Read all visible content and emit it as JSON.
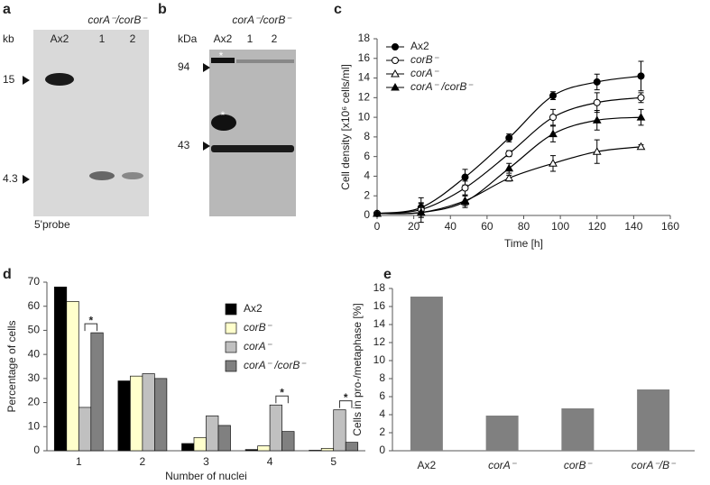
{
  "panels": {
    "a": "a",
    "b": "b",
    "c": "c",
    "d": "d",
    "e": "e"
  },
  "blot_a": {
    "unit": "kb",
    "lanes": [
      "Ax2",
      "1",
      "2"
    ],
    "group": "corA⁻/corB⁻",
    "markers": [
      "15",
      "4.3"
    ],
    "probe": "5'probe"
  },
  "blot_b": {
    "unit": "kDa",
    "lanes": [
      "Ax2",
      "1",
      "2"
    ],
    "group": "corA⁻/corB⁻",
    "markers": [
      "94",
      "43"
    ],
    "stars": [
      "*",
      "*"
    ]
  },
  "chart_data": [
    {
      "type": "line",
      "xlabel": "Time [h]",
      "ylabel": "Cell density [x10⁶ cells/ml]",
      "x": [
        0,
        24,
        48,
        72,
        96,
        120,
        144
      ],
      "xlim": [
        0,
        160
      ],
      "xticks": [
        0,
        20,
        40,
        60,
        80,
        100,
        120,
        140,
        160
      ],
      "ylim": [
        0,
        18
      ],
      "yticks": [
        0,
        2,
        4,
        6,
        8,
        10,
        12,
        14,
        16,
        18
      ],
      "legend": "upper-left",
      "series": [
        {
          "name": "Ax2",
          "color": "#000000",
          "marker": "circle",
          "filled": true,
          "values": [
            0.2,
            0.8,
            3.9,
            7.9,
            12.2,
            13.6,
            14.2
          ],
          "errors": [
            0.1,
            1.0,
            0.8,
            0.4,
            0.4,
            0.8,
            1.5
          ]
        },
        {
          "name": "corB⁻",
          "color": "#000000",
          "marker": "circle",
          "filled": false,
          "values": [
            0.2,
            0.6,
            2.8,
            6.3,
            10.0,
            11.5,
            12.0
          ],
          "errors": [
            0.1,
            0.6,
            0.7,
            0.3,
            0.8,
            1.0,
            0.5
          ]
        },
        {
          "name": "corA⁻",
          "color": "#000000",
          "marker": "triangle",
          "filled": false,
          "values": [
            0.2,
            0.3,
            1.5,
            3.8,
            5.3,
            6.5,
            7.0
          ],
          "errors": [
            0.1,
            0.5,
            0.5,
            0.3,
            0.8,
            1.2,
            0.2
          ]
        },
        {
          "name": "corA⁻ /corB⁻",
          "color": "#000000",
          "marker": "triangle",
          "filled": true,
          "values": [
            0.2,
            0.3,
            1.4,
            4.8,
            8.3,
            9.7,
            10.0
          ],
          "errors": [
            0.1,
            1.0,
            0.6,
            0.5,
            0.8,
            1.0,
            0.8
          ]
        }
      ]
    },
    {
      "type": "grouped-bar",
      "xlabel": "Number of nuclei",
      "ylabel": "Percentage of cells",
      "categories": [
        "1",
        "2",
        "3",
        "4",
        "5"
      ],
      "ylim": [
        0,
        70
      ],
      "yticks": [
        0,
        10,
        20,
        30,
        40,
        50,
        60,
        70
      ],
      "legend": "upper-right",
      "significance": [
        "*",
        "*",
        "*"
      ],
      "series": [
        {
          "name": "Ax2",
          "color": "#000000",
          "values": [
            68,
            29,
            3,
            0.5,
            0.2
          ]
        },
        {
          "name": "corB⁻",
          "color": "#ffffcc",
          "values": [
            62,
            31,
            5.5,
            2,
            1
          ]
        },
        {
          "name": "corA⁻",
          "color": "#c0c0c0",
          "values": [
            18,
            32,
            14.5,
            19,
            17
          ]
        },
        {
          "name": "corA⁻ /corB⁻",
          "color": "#808080",
          "values": [
            49,
            30,
            10.5,
            8,
            3.5
          ]
        }
      ]
    },
    {
      "type": "bar",
      "ylabel": "Cells in pro-/metaphase [%]",
      "categories": [
        "Ax2",
        "corA⁻",
        "corB⁻",
        "corA⁻/B⁻"
      ],
      "values": [
        17.1,
        3.9,
        4.7,
        6.8
      ],
      "color": "#808080",
      "ylim": [
        0,
        18
      ],
      "yticks": [
        0,
        2,
        4,
        6,
        8,
        10,
        12,
        14,
        16,
        18
      ]
    }
  ]
}
